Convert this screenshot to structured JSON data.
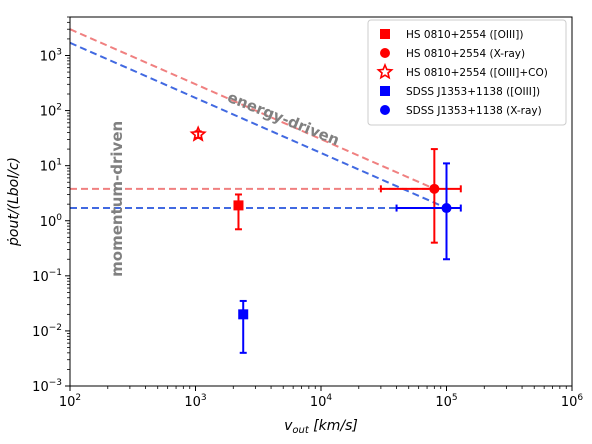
{
  "chart_data": {
    "type": "scatter",
    "xscale": "log",
    "yscale": "log",
    "xlim": [
      100,
      1000000
    ],
    "ylim": [
      0.001,
      5000
    ],
    "xlabel_main": "v",
    "xlabel_sub": "out",
    "xlabel_units": " [km/s]",
    "ylabel_text": "ṗout/(Lbol/c)",
    "x_ticks": [
      {
        "value": 100,
        "base": "10",
        "exp": "2"
      },
      {
        "value": 1000,
        "base": "10",
        "exp": "3"
      },
      {
        "value": 10000,
        "base": "10",
        "exp": "4"
      },
      {
        "value": 100000,
        "base": "10",
        "exp": "5"
      },
      {
        "value": 1000000,
        "base": "10",
        "exp": "6"
      }
    ],
    "y_ticks": [
      {
        "value": 0.001,
        "base": "10",
        "exp": "−3"
      },
      {
        "value": 0.01,
        "base": "10",
        "exp": "−2"
      },
      {
        "value": 0.1,
        "base": "10",
        "exp": "−1"
      },
      {
        "value": 1,
        "base": "10",
        "exp": "0"
      },
      {
        "value": 10,
        "base": "10",
        "exp": "1"
      },
      {
        "value": 100,
        "base": "10",
        "exp": "2"
      },
      {
        "value": 1000,
        "base": "10",
        "exp": "3"
      }
    ],
    "grid": false,
    "legend_position": "top-right",
    "annotations": [
      {
        "text": "energy-driven",
        "x": 5000,
        "y": 70,
        "rotate": 22,
        "color": "#808080"
      },
      {
        "text": "momentum-driven",
        "x": 240,
        "y": 2.5,
        "rotate": -90,
        "color": "#808080"
      }
    ],
    "lines": [
      {
        "name": "energy-driven red",
        "color": "#F08080",
        "x": [
          100,
          80000
        ],
        "y": [
          3000,
          3.8
        ]
      },
      {
        "name": "energy-driven blue",
        "color": "#4169E1",
        "x": [
          100,
          100000
        ],
        "y": [
          1700,
          1.7
        ]
      },
      {
        "name": "momentum-driven red",
        "color": "#F08080",
        "x": [
          100,
          80000
        ],
        "y": [
          3.8,
          3.8
        ]
      },
      {
        "name": "momentum-driven blue",
        "color": "#4169E1",
        "x": [
          100,
          100000
        ],
        "y": [
          1.7,
          1.7
        ]
      }
    ],
    "series": [
      {
        "name": "HS 0810+2554 ([OIII])",
        "marker": "square",
        "color": "#FF0000",
        "x": 2200,
        "y": 1.9,
        "yerr": [
          0.7,
          3.0
        ],
        "xerr": [
          2050,
          2350
        ]
      },
      {
        "name": "HS 0810+2554 (X-ray)",
        "marker": "circle",
        "color": "#FF0000",
        "x": 80000,
        "y": 3.8,
        "yerr": [
          0.4,
          20
        ],
        "xerr": [
          30000,
          130000
        ]
      },
      {
        "name": "HS 0810+2554 ([OIII]+CO)",
        "marker": "star-open",
        "color": "#FF0000",
        "x": 1050,
        "y": 37,
        "yerr": [
          32,
          42
        ],
        "xerr": null
      },
      {
        "name": "SDSS J1353+1138 ([OIII])",
        "marker": "square",
        "color": "#0000FF",
        "x": 2400,
        "y": 0.02,
        "yerr": [
          0.004,
          0.035
        ],
        "xerr": null
      },
      {
        "name": "SDSS J1353+1138 (X-ray)",
        "marker": "circle",
        "color": "#0000FF",
        "x": 100000,
        "y": 1.7,
        "yerr": [
          0.2,
          11
        ],
        "xerr": [
          40000,
          130000
        ]
      }
    ]
  }
}
